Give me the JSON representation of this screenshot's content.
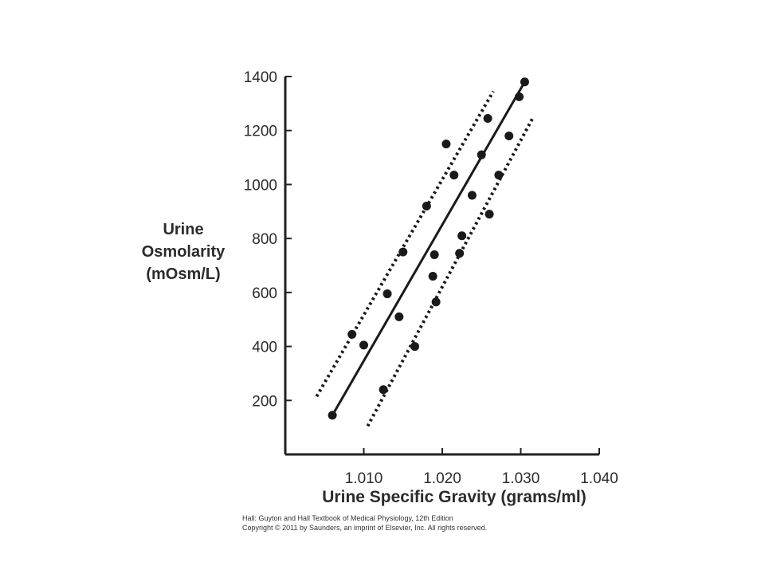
{
  "chart_data": {
    "type": "scatter",
    "title": "",
    "xlabel": "Urine Specific Gravity (grams/ml)",
    "ylabel_lines": [
      "Urine",
      "Osmolarity",
      "(mOsm/L)"
    ],
    "xlim": [
      1.0,
      1.04
    ],
    "ylim": [
      0,
      1400
    ],
    "xticks": [
      1.01,
      1.02,
      1.03,
      1.04
    ],
    "xtick_labels": [
      "1.010",
      "1.020",
      "1.030",
      "1.040"
    ],
    "yticks": [
      200,
      400,
      600,
      800,
      1000,
      1200,
      1400
    ],
    "ytick_labels": [
      "200",
      "400",
      "600",
      "800",
      "1000",
      "1200",
      "1400"
    ],
    "grid": false,
    "series": [
      {
        "kind": "points",
        "x": [
          1.006,
          1.0085,
          1.01,
          1.0125,
          1.013,
          1.0145,
          1.015,
          1.0165,
          1.018,
          1.0188,
          1.019,
          1.0192,
          1.0205,
          1.0215,
          1.0225,
          1.0222,
          1.0238,
          1.025,
          1.0258,
          1.026,
          1.0272,
          1.0285,
          1.0298,
          1.0305
        ],
        "y": [
          145,
          445,
          405,
          240,
          595,
          510,
          750,
          400,
          920,
          660,
          740,
          565,
          1150,
          1035,
          810,
          745,
          960,
          1110,
          1245,
          890,
          1035,
          1180,
          1325,
          1380
        ]
      },
      {
        "kind": "regression-line",
        "x": [
          1.006,
          1.0305
        ],
        "y": [
          145,
          1380
        ]
      },
      {
        "kind": "confidence-bound-upper",
        "x": [
          1.004,
          1.0265
        ],
        "y": [
          215,
          1345
        ]
      },
      {
        "kind": "confidence-bound-lower",
        "x": [
          1.0105,
          1.0315
        ],
        "y": [
          105,
          1245
        ]
      }
    ]
  },
  "credit": {
    "line1": "Hall: Guyton and Hall Textbook of Medical Physiology, 12th Edition",
    "line2": "Copyright © 2011 by Saunders, an imprint of Elsevier, Inc. All rights reserved."
  }
}
